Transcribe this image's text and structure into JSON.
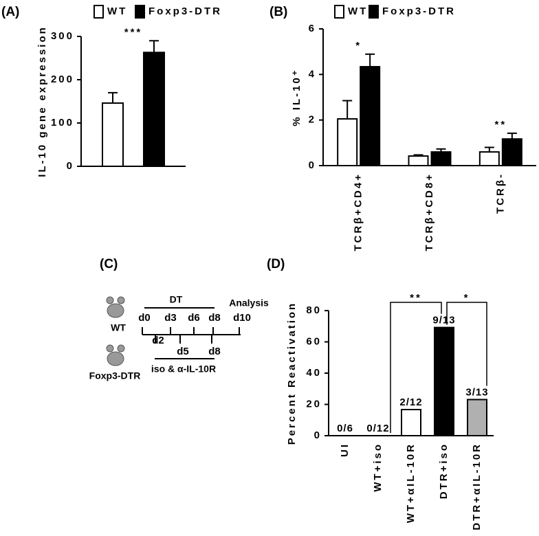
{
  "chart_data": [
    {
      "type": "bar",
      "panel": "(A)",
      "y_label": "IL-10 gene expression",
      "categories": [
        null
      ],
      "series": [
        {
          "name": "WT",
          "color": "#ffffff",
          "values": [
            146
          ],
          "errors": [
            24
          ]
        },
        {
          "name": "Foxp3-DTR",
          "color": "#000000",
          "values": [
            263
          ],
          "errors": [
            27
          ]
        }
      ],
      "annotations": [
        {
          "text": "***",
          "category": 0
        }
      ],
      "ylim": [
        0,
        300
      ],
      "yticks": [
        0,
        100,
        200,
        300
      ]
    },
    {
      "type": "bar",
      "panel": "(B)",
      "y_label": "% IL-10⁺",
      "categories": [
        "TCRβ+CD4+",
        "TCRβ+CD8+",
        "TCRβ-"
      ],
      "series": [
        {
          "name": "WT",
          "color": "#ffffff",
          "values": [
            2.05,
            0.42,
            0.6
          ],
          "errors": [
            0.8,
            0.05,
            0.2
          ]
        },
        {
          "name": "Foxp3-DTR",
          "color": "#000000",
          "values": [
            4.34,
            0.6,
            1.17
          ],
          "errors": [
            0.55,
            0.13,
            0.25
          ]
        }
      ],
      "annotations": [
        {
          "text": "*",
          "category": 0
        },
        {
          "text": "**",
          "category": 2
        }
      ],
      "ylim": [
        0,
        6
      ],
      "yticks": [
        0,
        2,
        4,
        6
      ]
    },
    {
      "type": "bar",
      "panel": "(D)",
      "y_label": "Percent Reactivation",
      "categories": [
        "UI",
        "WT+iso",
        "WT+αIL-10R",
        "DTR+iso",
        "DTR+αIL-10R"
      ],
      "values": [
        0,
        0,
        16.7,
        69.2,
        23.1
      ],
      "value_labels": [
        "0/6",
        "0/12",
        "2/12",
        "9/13",
        "3/13"
      ],
      "colors": [
        "#ffffff",
        "#ffffff",
        "#ffffff",
        "#000000",
        "#b0b0b0"
      ],
      "brackets": [
        {
          "text": "**",
          "from": 1,
          "to": 3
        },
        {
          "text": "*",
          "from": 3,
          "to": 4
        }
      ],
      "ylim": [
        0,
        80
      ],
      "yticks": [
        0,
        20,
        40,
        60,
        80
      ]
    }
  ],
  "diagram": {
    "panel": "(C)",
    "dt": "DT",
    "analysis": "Analysis",
    "top_days": [
      "d0",
      "d3",
      "d6",
      "d8",
      "d10"
    ],
    "bottom_days": [
      "d2",
      "d5",
      "d8"
    ],
    "mouse_top": "WT",
    "mouse_bottom": "Foxp3-DTR",
    "treatment": "iso & α-IL-10R"
  }
}
